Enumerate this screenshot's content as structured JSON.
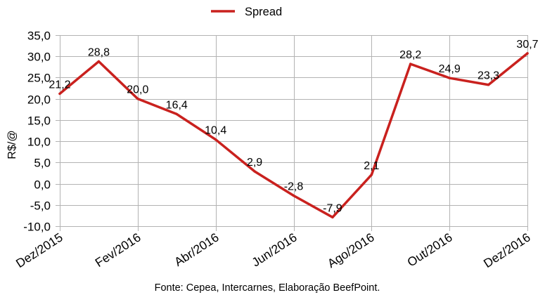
{
  "chart_data": {
    "type": "line",
    "ylabel": "R$/@",
    "x_tick_labels": [
      "Dez/2015",
      "Fev/2016",
      "Abr/2016",
      "Jun/2016",
      "Ago/2016",
      "Out/2016",
      "Dez/2016"
    ],
    "series": [
      {
        "name": "Spread",
        "color": "#c9211e",
        "values": [
          21.2,
          28.8,
          20.0,
          16.4,
          10.4,
          2.9,
          -2.8,
          -7.9,
          2.1,
          28.2,
          24.9,
          23.3,
          30.7
        ],
        "data_labels": [
          "21,2",
          "28,8",
          "20,0",
          "16,4",
          "10,4",
          "2,9",
          "-2,8",
          "-7,9",
          "2,1",
          "28,2",
          "24,9",
          "23,3",
          "30,7"
        ]
      }
    ],
    "ylim": [
      -10,
      35
    ],
    "yticks": [
      35,
      30,
      25,
      20,
      15,
      10,
      5,
      0,
      -5,
      -10
    ],
    "ytick_labels": [
      "35,0",
      "30,0",
      "25,0",
      "20,0",
      "15,0",
      "10,0",
      "5,0",
      "0,0",
      "-5,0",
      "-10,0"
    ],
    "grid": true,
    "legend": "top-center"
  },
  "source": "Fonte: Cepea, Intercarnes, Elaboração BeefPoint."
}
